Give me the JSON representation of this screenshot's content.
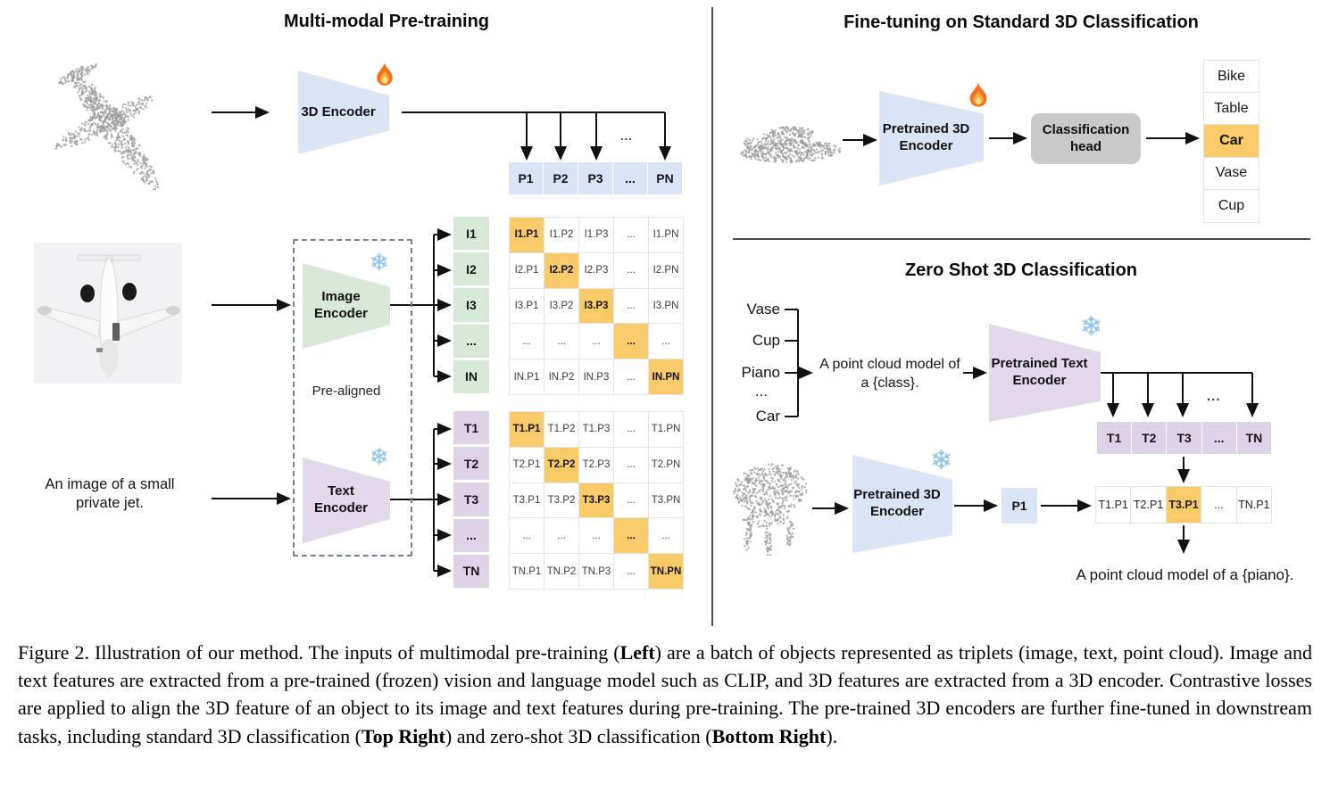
{
  "left": {
    "title": "Multi-modal Pre-training",
    "encoder_3d_label": "3D Encoder",
    "image_encoder_label": "Image\nEncoder",
    "text_encoder_label": "Text\nEncoder",
    "pre_aligned_label": "Pre-aligned",
    "input_caption": "An image of a small\nprivate jet.",
    "ellipsis": "...",
    "p_row": [
      "P1",
      "P2",
      "P3",
      "...",
      "PN"
    ],
    "image_row_headers": [
      "I1",
      "I2",
      "I3",
      "...",
      "IN"
    ],
    "image_matrix": [
      [
        "I1.P1",
        "I1.P2",
        "I1.P3",
        "...",
        "I1.PN"
      ],
      [
        "I2.P1",
        "I2.P2",
        "I2.P3",
        "...",
        "I2.PN"
      ],
      [
        "I3.P1",
        "I3.P2",
        "I3.P3",
        "...",
        "I3.PN"
      ],
      [
        "...",
        "...",
        "...",
        "...",
        "..."
      ],
      [
        "IN.P1",
        "IN.P2",
        "IN.P3",
        "...",
        "IN.PN"
      ]
    ],
    "text_row_headers": [
      "T1",
      "T2",
      "T3",
      "...",
      "TN"
    ],
    "text_matrix": [
      [
        "T1.P1",
        "T1.P2",
        "T1.P3",
        "...",
        "T1.PN"
      ],
      [
        "T2.P1",
        "T2.P2",
        "T2.P3",
        "...",
        "T2.PN"
      ],
      [
        "T3.P1",
        "T3.P2",
        "T3.P3",
        "...",
        "T3.PN"
      ],
      [
        "...",
        "...",
        "...",
        "...",
        "..."
      ],
      [
        "TN.P1",
        "TN.P2",
        "TN.P3",
        "...",
        "TN.PN"
      ]
    ]
  },
  "top_right": {
    "title": "Fine-tuning on Standard 3D Classification",
    "encoder_label": "Pretrained 3D\nEncoder",
    "head_label": "Classification\nhead",
    "classes": [
      "Bike",
      "Table",
      "Car",
      "Vase",
      "Cup"
    ],
    "highlight_index": 2
  },
  "bottom_right": {
    "title": "Zero Shot 3D Classification",
    "class_list": [
      "Vase",
      "Cup",
      "Piano",
      "...",
      "Car"
    ],
    "prompt": "A point cloud model of\na {class}.",
    "text_encoder_label": "Pretrained Text\nEncoder",
    "encoder_label": "Pretrained 3D\nEncoder",
    "p1_label": "P1",
    "t_row": [
      "T1",
      "T2",
      "T3",
      "...",
      "TN"
    ],
    "score_row": [
      "T1.P1",
      "T2.P1",
      "T3.P1",
      "...",
      "TN.P1"
    ],
    "score_highlight_index": 2,
    "result": "A point cloud model of a {piano}.",
    "ellipsis": "..."
  },
  "caption": {
    "parts": [
      {
        "text": "Figure 2. Illustration of our method. The inputs of multimodal pre-training ("
      },
      {
        "text": "Left",
        "bold": true
      },
      {
        "text": ") are a batch of objects represented as triplets (image, text, point cloud). Image and text features are extracted from a pre-trained (frozen) vision and language model such as CLIP, and 3D features are extracted from a 3D encoder. Contrastive losses are applied to align the 3D feature of an object to its image and text features during pre-training. The pre-trained 3D encoders are further fine-tuned in downstream tasks, including standard 3D classification ("
      },
      {
        "text": "Top Right",
        "bold": true
      },
      {
        "text": ") and zero-shot 3D classification ("
      },
      {
        "text": "Bottom Right",
        "bold": true
      },
      {
        "text": ")."
      }
    ]
  },
  "colors": {
    "blue": "#d9e4f7",
    "green": "#d8e8d6",
    "purple": "#e3d7eb",
    "purple_cell": "#ded2e9",
    "highlight_orange": "#f8ca68",
    "head_gray": "#c9c9c9"
  }
}
